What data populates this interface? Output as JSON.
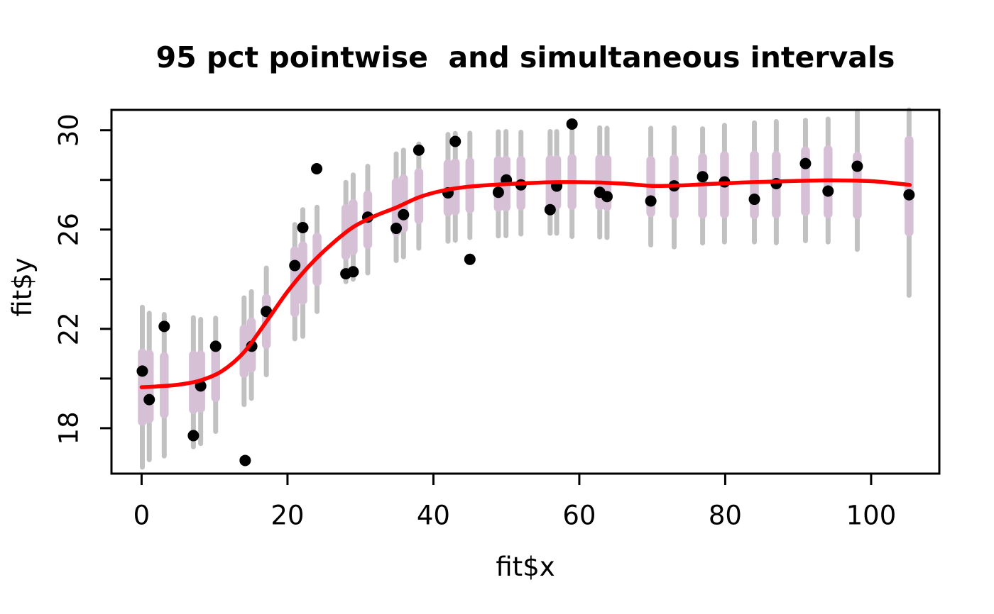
{
  "figure": {
    "title": "95 pct pointwise  and simultaneous intervals",
    "x_axis": {
      "label": "fit$x",
      "tick_values": [
        0,
        20,
        40,
        60,
        80,
        100
      ],
      "minor_unlabeled_ticks": []
    },
    "y_axis": {
      "label": "fit$y",
      "tick_values": [
        18,
        20,
        22,
        24,
        26,
        28,
        30
      ],
      "labeled_ticks": [
        18,
        22,
        26,
        30
      ]
    }
  },
  "colors": {
    "background": "#ffffff",
    "axis": "#000000",
    "points": "#000000",
    "smooth_line": "#ff0000",
    "pointwise_band": "#d5c0d6",
    "simultaneous_band": "#c1c1c1"
  },
  "chart_data": {
    "type": "scatter",
    "title": "95 pct pointwise  and simultaneous intervals",
    "xlabel": "fit$x",
    "ylabel": "fit$y",
    "xlim": [
      -4.13,
      109.35
    ],
    "ylim": [
      16.17,
      30.82
    ],
    "x_ticks": [
      0,
      20,
      40,
      60,
      80,
      100
    ],
    "y_ticks": [
      18,
      20,
      22,
      24,
      26,
      28,
      30
    ],
    "y_tick_labels_shown": [
      18,
      22,
      26,
      30
    ],
    "grid": false,
    "legend_position": "none",
    "points": [
      [
        0.1,
        20.3
      ],
      [
        1.05,
        19.15
      ],
      [
        3.1,
        22.1
      ],
      [
        7.1,
        17.7
      ],
      [
        8.1,
        19.7
      ],
      [
        10.15,
        21.3
      ],
      [
        14.2,
        16.7
      ],
      [
        15.1,
        21.3
      ],
      [
        17.1,
        22.7
      ],
      [
        21.0,
        24.55
      ],
      [
        22.1,
        26.08
      ],
      [
        24.0,
        28.45
      ],
      [
        28.0,
        24.22
      ],
      [
        29.0,
        24.3
      ],
      [
        31.0,
        26.5
      ],
      [
        34.9,
        26.05
      ],
      [
        35.9,
        26.6
      ],
      [
        38.0,
        29.2
      ],
      [
        42.0,
        27.48
      ],
      [
        43.0,
        29.55
      ],
      [
        45.0,
        24.8
      ],
      [
        48.9,
        27.5
      ],
      [
        50.0,
        28.0
      ],
      [
        52.0,
        27.8
      ],
      [
        56.0,
        26.8
      ],
      [
        56.9,
        27.75
      ],
      [
        59.0,
        30.25
      ],
      [
        62.8,
        27.5
      ],
      [
        63.8,
        27.33
      ],
      [
        69.8,
        27.15
      ],
      [
        73.0,
        27.76
      ],
      [
        76.9,
        28.13
      ],
      [
        79.9,
        27.92
      ],
      [
        84.0,
        27.22
      ],
      [
        87.0,
        27.85
      ],
      [
        91.0,
        28.66
      ],
      [
        94.1,
        27.55
      ],
      [
        98.1,
        28.55
      ],
      [
        105.2,
        27.4
      ]
    ],
    "intervals": [
      {
        "x": 0.1,
        "fit": 19.65,
        "pw": [
          18.27,
          21.03
        ],
        "sim": [
          16.43,
          22.87
        ]
      },
      {
        "x": 1.05,
        "fit": 19.68,
        "pw": [
          18.38,
          20.98
        ],
        "sim": [
          16.73,
          22.63
        ]
      },
      {
        "x": 3.1,
        "fit": 19.73,
        "pw": [
          18.58,
          20.88
        ],
        "sim": [
          16.88,
          22.58
        ]
      },
      {
        "x": 7.1,
        "fit": 19.85,
        "pw": [
          18.75,
          20.95
        ],
        "sim": [
          17.25,
          22.45
        ]
      },
      {
        "x": 8.1,
        "fit": 19.88,
        "pw": [
          18.8,
          20.96
        ],
        "sim": [
          17.38,
          22.38
        ]
      },
      {
        "x": 10.15,
        "fit": 20.15,
        "pw": [
          19.23,
          21.07
        ],
        "sim": [
          17.87,
          22.43
        ]
      },
      {
        "x": 14.05,
        "fit": 21.1,
        "pw": [
          20.2,
          22.0
        ],
        "sim": [
          18.95,
          23.25
        ]
      },
      {
        "x": 15.05,
        "fit": 21.35,
        "pw": [
          20.42,
          22.28
        ],
        "sim": [
          19.2,
          23.5
        ]
      },
      {
        "x": 17.1,
        "fit": 22.3,
        "pw": [
          21.37,
          23.23
        ],
        "sim": [
          20.15,
          24.45
        ]
      },
      {
        "x": 21.0,
        "fit": 23.9,
        "pw": [
          22.65,
          25.15
        ],
        "sim": [
          21.6,
          26.2
        ]
      },
      {
        "x": 22.1,
        "fit": 24.25,
        "pw": [
          23.15,
          25.35
        ],
        "sim": [
          21.7,
          26.8
        ]
      },
      {
        "x": 24.05,
        "fit": 24.8,
        "pw": [
          23.9,
          25.7
        ],
        "sim": [
          22.7,
          26.9
        ]
      },
      {
        "x": 28.0,
        "fit": 25.9,
        "pw": [
          24.95,
          26.85
        ],
        "sim": [
          23.9,
          27.9
        ]
      },
      {
        "x": 29.0,
        "fit": 26.1,
        "pw": [
          25.15,
          27.05
        ],
        "sim": [
          24.0,
          28.2
        ]
      },
      {
        "x": 31.0,
        "fit": 26.4,
        "pw": [
          25.4,
          27.4
        ],
        "sim": [
          24.25,
          28.55
        ]
      },
      {
        "x": 34.9,
        "fit": 26.9,
        "pw": [
          25.9,
          27.9
        ],
        "sim": [
          24.75,
          29.05
        ]
      },
      {
        "x": 35.9,
        "fit": 27.05,
        "pw": [
          26.05,
          28.05
        ],
        "sim": [
          24.9,
          29.2
        ]
      },
      {
        "x": 38.0,
        "fit": 27.35,
        "pw": [
          26.4,
          28.3
        ],
        "sim": [
          25.25,
          29.45
        ]
      },
      {
        "x": 42.0,
        "fit": 27.68,
        "pw": [
          26.71,
          28.65
        ],
        "sim": [
          25.53,
          29.83
        ]
      },
      {
        "x": 43.0,
        "fit": 27.72,
        "pw": [
          26.75,
          28.69
        ],
        "sim": [
          25.57,
          29.87
        ]
      },
      {
        "x": 45.0,
        "fit": 27.78,
        "pw": [
          26.83,
          28.73
        ],
        "sim": [
          25.68,
          29.88
        ]
      },
      {
        "x": 48.9,
        "fit": 27.84,
        "pw": [
          26.89,
          28.79
        ],
        "sim": [
          25.74,
          29.94
        ]
      },
      {
        "x": 49.95,
        "fit": 27.85,
        "pw": [
          26.9,
          28.8
        ],
        "sim": [
          25.75,
          29.95
        ]
      },
      {
        "x": 52.0,
        "fit": 27.87,
        "pw": [
          26.95,
          28.79
        ],
        "sim": [
          25.82,
          29.92
        ]
      },
      {
        "x": 56.0,
        "fit": 27.9,
        "pw": [
          26.98,
          28.82
        ],
        "sim": [
          25.85,
          29.95
        ]
      },
      {
        "x": 56.9,
        "fit": 27.9,
        "pw": [
          26.98,
          28.82
        ],
        "sim": [
          25.85,
          29.95
        ]
      },
      {
        "x": 59.0,
        "fit": 27.92,
        "pw": [
          26.97,
          28.87
        ],
        "sim": [
          25.72,
          30.12
        ]
      },
      {
        "x": 62.8,
        "fit": 27.9,
        "pw": [
          26.95,
          28.85
        ],
        "sim": [
          25.7,
          30.1
        ]
      },
      {
        "x": 63.8,
        "fit": 27.88,
        "pw": [
          26.93,
          28.83
        ],
        "sim": [
          25.68,
          30.08
        ]
      },
      {
        "x": 69.8,
        "fit": 27.73,
        "pw": [
          26.68,
          28.78
        ],
        "sim": [
          25.38,
          30.08
        ]
      },
      {
        "x": 73.0,
        "fit": 27.72,
        "pw": [
          26.6,
          28.85
        ],
        "sim": [
          25.3,
          30.1
        ]
      },
      {
        "x": 76.9,
        "fit": 27.76,
        "pw": [
          26.62,
          28.9
        ],
        "sim": [
          25.46,
          30.06
        ]
      },
      {
        "x": 79.9,
        "fit": 27.8,
        "pw": [
          26.63,
          28.98
        ],
        "sim": [
          25.5,
          30.2
        ]
      },
      {
        "x": 84.0,
        "fit": 27.8,
        "pw": [
          26.6,
          29.0
        ],
        "sim": [
          25.5,
          30.3
        ]
      },
      {
        "x": 87.0,
        "fit": 27.8,
        "pw": [
          26.63,
          28.98
        ],
        "sim": [
          25.47,
          30.35
        ]
      },
      {
        "x": 91.0,
        "fit": 27.95,
        "pw": [
          26.72,
          29.17
        ],
        "sim": [
          25.55,
          30.4
        ]
      },
      {
        "x": 94.1,
        "fit": 27.92,
        "pw": [
          26.63,
          29.22
        ],
        "sim": [
          25.5,
          30.45
        ]
      },
      {
        "x": 98.1,
        "fit": 27.76,
        "pw": [
          26.6,
          28.95
        ],
        "sim": [
          25.2,
          30.75
        ]
      },
      {
        "x": 105.2,
        "fit": 27.78,
        "pw": [
          25.9,
          29.6
        ],
        "sim": [
          23.35,
          30.82
        ]
      }
    ],
    "smooth_curve": [
      [
        0,
        19.65
      ],
      [
        2,
        19.68
      ],
      [
        5,
        19.75
      ],
      [
        8,
        19.92
      ],
      [
        11,
        20.3
      ],
      [
        14,
        21.05
      ],
      [
        17,
        22.25
      ],
      [
        20,
        23.5
      ],
      [
        23,
        24.55
      ],
      [
        26,
        25.4
      ],
      [
        29,
        26.1
      ],
      [
        32,
        26.55
      ],
      [
        35,
        26.9
      ],
      [
        38,
        27.3
      ],
      [
        41,
        27.55
      ],
      [
        44,
        27.7
      ],
      [
        48,
        27.8
      ],
      [
        52,
        27.86
      ],
      [
        57,
        27.91
      ],
      [
        62,
        27.9
      ],
      [
        66,
        27.85
      ],
      [
        70,
        27.76
      ],
      [
        74,
        27.78
      ],
      [
        78,
        27.84
      ],
      [
        82,
        27.89
      ],
      [
        86,
        27.93
      ],
      [
        90,
        27.96
      ],
      [
        94,
        27.98
      ],
      [
        98,
        27.97
      ],
      [
        101,
        27.93
      ],
      [
        105.3,
        27.8
      ]
    ]
  }
}
